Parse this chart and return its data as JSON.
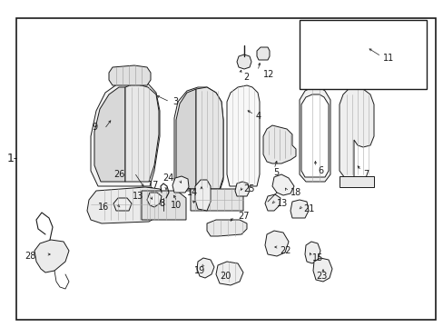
{
  "fig_width": 4.89,
  "fig_height": 3.6,
  "dpi": 100,
  "bg_color": "#ffffff",
  "line_color": "#1a1a1a",
  "border_lw": 1.2,
  "part_lw": 0.7,
  "label_fontsize": 7.0,
  "label1_fontsize": 9.0,
  "arrow_lw": 0.5,
  "arrow_ms": 4
}
